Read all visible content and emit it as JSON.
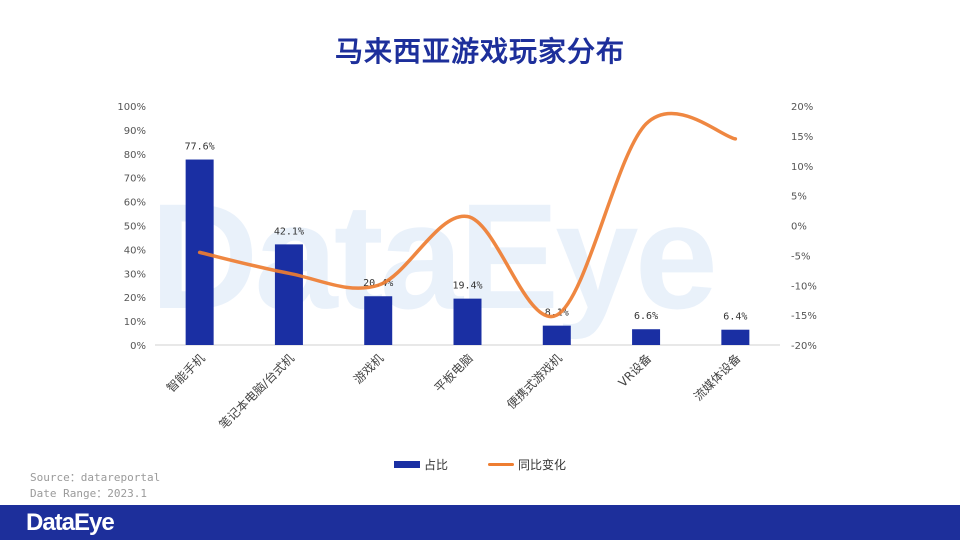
{
  "title": "马来西亚游戏玩家分布",
  "watermark": "DataEye",
  "source": {
    "line1": "Source：datareportal",
    "line2": "Date Range：2023.1"
  },
  "footer": {
    "logo": "DataEye"
  },
  "colors": {
    "bar": "#1a2fa3",
    "line": "#ee7d31",
    "title": "#1d2f9b",
    "footer": "#1d2f9b"
  },
  "chart_data": {
    "type": "bar",
    "categories": [
      "智能手机",
      "笔记本电脑/台式机",
      "游戏机",
      "平板电脑",
      "便携式游戏机",
      "VR设备",
      "流媒体设备"
    ],
    "series": [
      {
        "name": "占比",
        "type": "bar",
        "axis": "left",
        "values": [
          77.6,
          42.1,
          20.4,
          19.4,
          8.1,
          6.6,
          6.4
        ],
        "labels": [
          "77.6%",
          "42.1%",
          "20.4%",
          "19.4%",
          "8.1%",
          "6.6%",
          "6.4%"
        ]
      },
      {
        "name": "同比变化",
        "type": "line",
        "axis": "right",
        "smooth": true,
        "values": [
          -4.5,
          -8.0,
          -10.0,
          1.5,
          -15.0,
          17.0,
          14.5
        ]
      }
    ],
    "y_left": {
      "min": 0,
      "max": 100,
      "ticks": [
        "0%",
        "10%",
        "20%",
        "30%",
        "40%",
        "50%",
        "60%",
        "70%",
        "80%",
        "90%",
        "100%"
      ]
    },
    "y_right": {
      "min": -20,
      "max": 20,
      "ticks": [
        "-20%",
        "-15%",
        "-10%",
        "-5%",
        "0%",
        "5%",
        "10%",
        "15%",
        "20%"
      ]
    },
    "legend_position": "bottom",
    "grid": false
  }
}
